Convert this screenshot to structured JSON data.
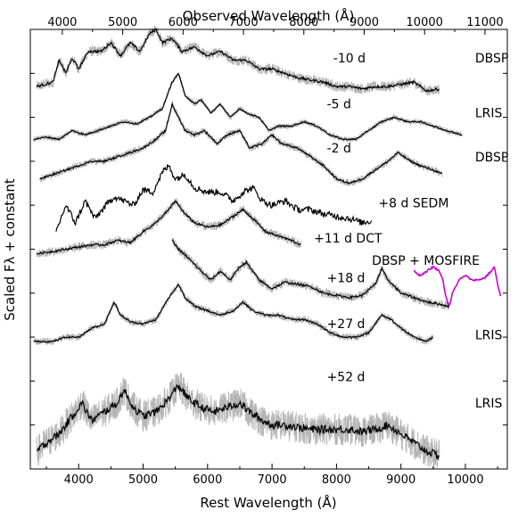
{
  "chart_data": {
    "type": "line",
    "xlabel": "Rest Wavelength (Å)",
    "x2label": "Observed Wavelength (Å)",
    "ylabel": "Scaled Fλ + constant",
    "xlim": [
      3250,
      10650
    ],
    "x2lim": [
      3470,
      11370
    ],
    "x_ticks": [
      4000,
      5000,
      6000,
      7000,
      8000,
      9000,
      10000
    ],
    "x2_ticks": [
      4000,
      5000,
      6000,
      7000,
      8000,
      9000,
      10000,
      11000
    ],
    "ylim": [
      0,
      10
    ],
    "grid": false,
    "colors": {
      "observed": "#000000",
      "raw": "#b4b4b4",
      "nir": "#cc00cc"
    },
    "series": [
      {
        "epoch": "-10 d",
        "instrument": "DBSP",
        "raw": true,
        "noise": 0.06,
        "points": [
          [
            3350,
            8.7
          ],
          [
            3600,
            8.8
          ],
          [
            3700,
            9.3
          ],
          [
            3800,
            9.0
          ],
          [
            3900,
            9.35
          ],
          [
            4000,
            9.1
          ],
          [
            4150,
            9.5
          ],
          [
            4350,
            9.5
          ],
          [
            4500,
            9.7
          ],
          [
            4650,
            9.4
          ],
          [
            4800,
            9.7
          ],
          [
            4950,
            9.5
          ],
          [
            5100,
            9.9
          ],
          [
            5200,
            10.0
          ],
          [
            5300,
            9.7
          ],
          [
            5450,
            9.8
          ],
          [
            5600,
            9.5
          ],
          [
            5800,
            9.6
          ],
          [
            6000,
            9.4
          ],
          [
            6200,
            9.5
          ],
          [
            6400,
            9.3
          ],
          [
            6600,
            9.3
          ],
          [
            6800,
            9.1
          ],
          [
            7000,
            9.1
          ],
          [
            7200,
            9.0
          ],
          [
            7400,
            8.9
          ],
          [
            7600,
            8.85
          ],
          [
            7800,
            8.8
          ],
          [
            8000,
            8.7
          ],
          [
            8200,
            8.7
          ],
          [
            8400,
            8.65
          ],
          [
            8600,
            8.7
          ],
          [
            8800,
            8.7
          ],
          [
            9000,
            8.75
          ],
          [
            9200,
            8.8
          ],
          [
            9400,
            8.6
          ],
          [
            9600,
            8.65
          ]
        ]
      },
      {
        "epoch": "-5 d",
        "instrument": "LRIS",
        "raw": true,
        "noise": 0.03,
        "points": [
          [
            3300,
            7.5
          ],
          [
            3500,
            7.55
          ],
          [
            3700,
            7.5
          ],
          [
            3900,
            7.7
          ],
          [
            4100,
            7.6
          ],
          [
            4300,
            7.7
          ],
          [
            4500,
            7.8
          ],
          [
            4700,
            7.9
          ],
          [
            4900,
            7.85
          ],
          [
            5100,
            8.0
          ],
          [
            5300,
            8.2
          ],
          [
            5450,
            8.8
          ],
          [
            5550,
            9.0
          ],
          [
            5650,
            8.5
          ],
          [
            5800,
            8.3
          ],
          [
            5900,
            8.4
          ],
          [
            6050,
            8.1
          ],
          [
            6200,
            8.3
          ],
          [
            6350,
            8.0
          ],
          [
            6500,
            8.2
          ],
          [
            6600,
            8.1
          ],
          [
            6800,
            8.0
          ],
          [
            6950,
            7.7
          ],
          [
            7100,
            7.8
          ],
          [
            7300,
            7.8
          ],
          [
            7500,
            7.9
          ],
          [
            7700,
            7.8
          ],
          [
            7900,
            7.6
          ],
          [
            8100,
            7.5
          ],
          [
            8300,
            7.5
          ],
          [
            8500,
            7.7
          ],
          [
            8700,
            7.9
          ],
          [
            8900,
            8.0
          ],
          [
            9100,
            7.9
          ],
          [
            9300,
            7.9
          ],
          [
            9500,
            7.8
          ],
          [
            9700,
            7.7
          ],
          [
            9950,
            7.6
          ]
        ]
      },
      {
        "epoch": "-2 d",
        "instrument": "DBSP",
        "raw": true,
        "noise": 0.04,
        "points": [
          [
            3400,
            6.6
          ],
          [
            3600,
            6.7
          ],
          [
            3800,
            6.8
          ],
          [
            4000,
            6.9
          ],
          [
            4200,
            7.0
          ],
          [
            4400,
            7.0
          ],
          [
            4600,
            7.1
          ],
          [
            4800,
            7.2
          ],
          [
            5000,
            7.3
          ],
          [
            5200,
            7.5
          ],
          [
            5350,
            7.7
          ],
          [
            5450,
            8.3
          ],
          [
            5550,
            8.0
          ],
          [
            5650,
            7.7
          ],
          [
            5800,
            7.6
          ],
          [
            5950,
            7.7
          ],
          [
            6150,
            7.4
          ],
          [
            6300,
            7.6
          ],
          [
            6500,
            7.7
          ],
          [
            6650,
            7.3
          ],
          [
            6850,
            7.4
          ],
          [
            7000,
            7.6
          ],
          [
            7150,
            7.4
          ],
          [
            7400,
            7.3
          ],
          [
            7600,
            7.1
          ],
          [
            7800,
            6.9
          ],
          [
            8000,
            6.6
          ],
          [
            8200,
            6.5
          ],
          [
            8400,
            6.6
          ],
          [
            8600,
            6.8
          ],
          [
            8800,
            7.0
          ],
          [
            8950,
            7.2
          ],
          [
            9150,
            7.0
          ],
          [
            9300,
            6.9
          ],
          [
            9500,
            6.8
          ],
          [
            9650,
            6.7
          ]
        ]
      },
      {
        "epoch": "+8 d",
        "instrument": "SEDM",
        "raw": false,
        "noise": 0.15,
        "points": [
          [
            3650,
            5.4
          ],
          [
            3800,
            6.0
          ],
          [
            3950,
            5.6
          ],
          [
            4100,
            6.1
          ],
          [
            4250,
            5.7
          ],
          [
            4400,
            5.95
          ],
          [
            4550,
            6.2
          ],
          [
            4700,
            6.1
          ],
          [
            4850,
            6.0
          ],
          [
            5000,
            6.35
          ],
          [
            5150,
            6.3
          ],
          [
            5300,
            6.75
          ],
          [
            5400,
            6.9
          ],
          [
            5500,
            6.6
          ],
          [
            5650,
            6.7
          ],
          [
            5800,
            6.4
          ],
          [
            6000,
            6.3
          ],
          [
            6200,
            6.3
          ],
          [
            6400,
            6.1
          ],
          [
            6550,
            6.3
          ],
          [
            6700,
            6.4
          ],
          [
            6850,
            6.1
          ],
          [
            7000,
            6.0
          ],
          [
            7200,
            6.1
          ],
          [
            7400,
            5.9
          ],
          [
            7600,
            5.9
          ],
          [
            7800,
            5.8
          ],
          [
            8000,
            5.75
          ],
          [
            8200,
            5.7
          ],
          [
            8400,
            5.6
          ],
          [
            8550,
            5.65
          ]
        ]
      },
      {
        "epoch": "+11 d",
        "instrument": "DCT",
        "raw": true,
        "noise": 0.05,
        "points": [
          [
            3350,
            4.9
          ],
          [
            3600,
            4.95
          ],
          [
            3800,
            5.0
          ],
          [
            4000,
            5.05
          ],
          [
            4200,
            5.1
          ],
          [
            4400,
            5.1
          ],
          [
            4600,
            5.2
          ],
          [
            4800,
            5.15
          ],
          [
            5000,
            5.4
          ],
          [
            5200,
            5.6
          ],
          [
            5400,
            5.9
          ],
          [
            5500,
            6.1
          ],
          [
            5650,
            5.8
          ],
          [
            5800,
            5.6
          ],
          [
            6000,
            5.5
          ],
          [
            6200,
            5.55
          ],
          [
            6400,
            5.75
          ],
          [
            6550,
            5.9
          ],
          [
            6700,
            5.7
          ],
          [
            6900,
            5.4
          ],
          [
            7100,
            5.3
          ],
          [
            7300,
            5.2
          ],
          [
            7450,
            5.1
          ]
        ]
      },
      {
        "epoch": "+18 d",
        "instrument": "DBSP",
        "raw": true,
        "noise": 0.05,
        "points": [
          [
            5450,
            5.2
          ],
          [
            5550,
            5.0
          ],
          [
            5700,
            4.8
          ],
          [
            5900,
            4.5
          ],
          [
            6050,
            4.3
          ],
          [
            6200,
            4.5
          ],
          [
            6350,
            4.3
          ],
          [
            6500,
            4.6
          ],
          [
            6600,
            4.7
          ],
          [
            6800,
            4.3
          ],
          [
            7000,
            4.1
          ],
          [
            7200,
            4.25
          ],
          [
            7400,
            4.2
          ],
          [
            7600,
            4.15
          ],
          [
            7800,
            4.0
          ],
          [
            8000,
            3.95
          ],
          [
            8200,
            3.9
          ],
          [
            8400,
            3.95
          ],
          [
            8600,
            4.2
          ],
          [
            8700,
            4.55
          ],
          [
            8800,
            4.3
          ],
          [
            9000,
            4.0
          ],
          [
            9200,
            3.9
          ],
          [
            9400,
            3.8
          ],
          [
            9600,
            3.75
          ],
          [
            9750,
            3.7
          ]
        ]
      },
      {
        "epoch": "+18 d",
        "instrument": "MOSFIRE",
        "raw": false,
        "nir": true,
        "noise": 0.04,
        "points": [
          [
            9200,
            4.5
          ],
          [
            9300,
            4.4
          ],
          [
            9400,
            4.5
          ],
          [
            9500,
            4.6
          ],
          [
            9600,
            4.5
          ],
          [
            9650,
            4.3
          ],
          [
            9700,
            3.9
          ],
          [
            9750,
            3.7
          ],
          [
            9800,
            4.0
          ],
          [
            9900,
            4.3
          ],
          [
            10000,
            4.4
          ],
          [
            10100,
            4.3
          ],
          [
            10200,
            4.3
          ],
          [
            10300,
            4.35
          ],
          [
            10400,
            4.5
          ],
          [
            10450,
            4.6
          ],
          [
            10500,
            4.2
          ],
          [
            10550,
            3.9
          ]
        ]
      },
      {
        "epoch": "+27 d",
        "instrument": "LRIS",
        "raw": true,
        "noise": 0.04,
        "points": [
          [
            3300,
            2.9
          ],
          [
            3600,
            2.9
          ],
          [
            3800,
            3.0
          ],
          [
            4000,
            3.0
          ],
          [
            4200,
            3.2
          ],
          [
            4400,
            3.3
          ],
          [
            4550,
            3.8
          ],
          [
            4650,
            3.5
          ],
          [
            4800,
            3.35
          ],
          [
            5000,
            3.3
          ],
          [
            5200,
            3.4
          ],
          [
            5400,
            3.9
          ],
          [
            5550,
            4.2
          ],
          [
            5650,
            3.9
          ],
          [
            5800,
            3.7
          ],
          [
            6000,
            3.6
          ],
          [
            6200,
            3.5
          ],
          [
            6400,
            3.6
          ],
          [
            6550,
            3.8
          ],
          [
            6700,
            3.6
          ],
          [
            6900,
            3.5
          ],
          [
            7100,
            3.5
          ],
          [
            7300,
            3.4
          ],
          [
            7500,
            3.4
          ],
          [
            7700,
            3.3
          ],
          [
            7900,
            3.1
          ],
          [
            8100,
            3.0
          ],
          [
            8300,
            3.0
          ],
          [
            8500,
            3.1
          ],
          [
            8700,
            3.5
          ],
          [
            8850,
            3.4
          ],
          [
            9000,
            3.2
          ],
          [
            9200,
            3.0
          ],
          [
            9400,
            2.9
          ],
          [
            9500,
            3.0
          ]
        ]
      },
      {
        "epoch": "+52 d",
        "instrument": "LRIS",
        "raw": true,
        "noise": 0.18,
        "points": [
          [
            3350,
            0.4
          ],
          [
            3500,
            0.6
          ],
          [
            3700,
            0.8
          ],
          [
            3900,
            1.2
          ],
          [
            4050,
            1.5
          ],
          [
            4200,
            1.1
          ],
          [
            4400,
            1.3
          ],
          [
            4600,
            1.5
          ],
          [
            4700,
            1.8
          ],
          [
            4850,
            1.4
          ],
          [
            5000,
            1.2
          ],
          [
            5200,
            1.3
          ],
          [
            5400,
            1.6
          ],
          [
            5550,
            1.9
          ],
          [
            5700,
            1.6
          ],
          [
            5900,
            1.4
          ],
          [
            6100,
            1.3
          ],
          [
            6300,
            1.4
          ],
          [
            6500,
            1.5
          ],
          [
            6650,
            1.3
          ],
          [
            6850,
            1.1
          ],
          [
            7000,
            1.0
          ],
          [
            7200,
            1.0
          ],
          [
            7400,
            0.95
          ],
          [
            7600,
            0.9
          ],
          [
            7800,
            0.9
          ],
          [
            8000,
            0.9
          ],
          [
            8200,
            0.9
          ],
          [
            8400,
            0.85
          ],
          [
            8600,
            0.9
          ],
          [
            8800,
            1.0
          ],
          [
            9000,
            0.8
          ],
          [
            9200,
            0.6
          ],
          [
            9400,
            0.4
          ],
          [
            9600,
            0.3
          ]
        ]
      }
    ],
    "annotations": [
      {
        "text": "-10 d",
        "x": 7950,
        "y": 9.25
      },
      {
        "text": "DBSP",
        "x": 10150,
        "y": 9.25
      },
      {
        "text": "-5 d",
        "x": 7850,
        "y": 8.2
      },
      {
        "text": "LRIS",
        "x": 10150,
        "y": 8.0
      },
      {
        "text": "-2 d",
        "x": 7850,
        "y": 7.2
      },
      {
        "text": "DBSP",
        "x": 10150,
        "y": 7.0
      },
      {
        "text": "+8 d SEDM",
        "x": 8650,
        "y": 5.95
      },
      {
        "text": "+11 d DCT",
        "x": 7650,
        "y": 5.15
      },
      {
        "text": "DBSP + MOSFIRE",
        "x": 8550,
        "y": 4.65
      },
      {
        "text": "+18 d",
        "x": 7850,
        "y": 4.25
      },
      {
        "text": "+27 d",
        "x": 7850,
        "y": 3.2
      },
      {
        "text": "LRIS",
        "x": 10150,
        "y": 2.95
      },
      {
        "text": "+52 d",
        "x": 7850,
        "y": 2.0
      },
      {
        "text": "LRIS",
        "x": 10150,
        "y": 1.4
      }
    ]
  }
}
